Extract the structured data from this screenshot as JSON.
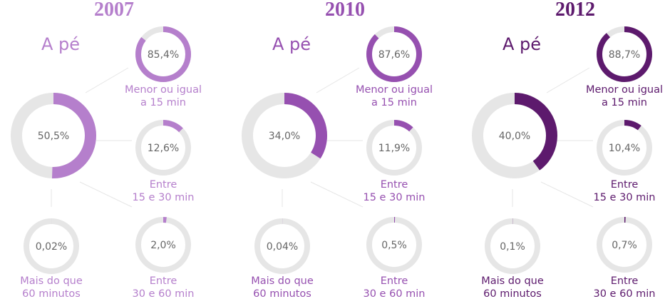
{
  "chart_data": [
    {
      "type": "donut",
      "title": "2007",
      "subtitle": "A pé",
      "color": "#b57fcc",
      "categories": [
        null,
        "Menor ou igual\na 15 min",
        "Entre\n15 e 30 min",
        "Mais do que\n60 minutos",
        "Entre\n30 e 60 min"
      ],
      "values": [
        50.5,
        85.4,
        12.6,
        0.02,
        2.0
      ],
      "value_labels": [
        "50,5%",
        "85,4%",
        "12,6%",
        "0,02%",
        "2,0%"
      ]
    },
    {
      "type": "donut",
      "title": "2010",
      "subtitle": "A pé",
      "color": "#9650b0",
      "categories": [
        null,
        "Menor ou igual\na 15 min",
        "Entre\n15 e 30 min",
        "Mais do que\n60 minutos",
        "Entre\n30 e 60 min"
      ],
      "values": [
        34.0,
        87.6,
        11.9,
        0.04,
        0.5
      ],
      "value_labels": [
        "34,0%",
        "87,6%",
        "11,9%",
        "0,04%",
        "0,5%"
      ]
    },
    {
      "type": "donut",
      "title": "2012",
      "subtitle": "A pé",
      "color": "#5d1a6d",
      "categories": [
        null,
        "Menor ou igual\na 15 min",
        "Entre\n15 e 30 min",
        "Mais do que\n60 minutos",
        "Entre\n30 e 60 min"
      ],
      "values": [
        40.0,
        88.7,
        10.4,
        0.1,
        0.7
      ],
      "value_labels": [
        "40,0%",
        "88,7%",
        "10,4%",
        "0,1%",
        "0,7%"
      ]
    }
  ]
}
